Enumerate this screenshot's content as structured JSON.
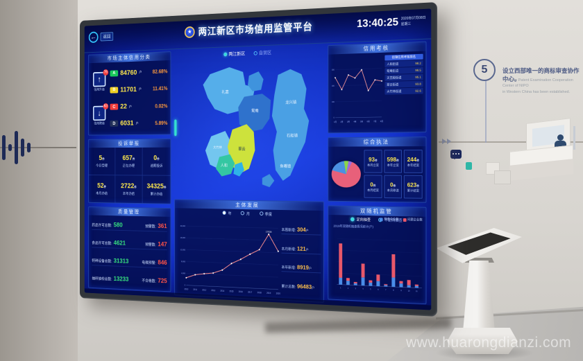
{
  "watermark": "www.huarongdianzi.com",
  "wall": {
    "step_number": "5",
    "milestone_zh": "设立西部唯一的商标审查协作中心。",
    "milestone_en_line1": "The only Patent Examination Cooperation Center of NIPO",
    "milestone_en_line2": "in Western China has been established."
  },
  "screen": {
    "back_label": "返回",
    "back_arrow": "←",
    "title": "两江新区市场信用监管平台",
    "clock": {
      "time": "13:40:25",
      "date": "2020年07月08日",
      "week": "星期三"
    },
    "map": {
      "tabs": [
        {
          "label": "两江新区"
        },
        {
          "label": "自贸区"
        }
      ],
      "labels": [
        "礼嘉",
        "鸳鸯",
        "翠云",
        "人和",
        "大竹林",
        "龙兴镇",
        "石船镇",
        "鱼嘴镇"
      ]
    },
    "panels": {
      "credit": {
        "title": "市场主体信用分类",
        "up": {
          "badge": "76",
          "label": "信用升级",
          "arrow": "↑"
        },
        "down": {
          "badge": "63",
          "label": "信用降级",
          "arrow": "↓"
        },
        "rows": [
          {
            "grade": "A",
            "count": "84760",
            "unit": "户",
            "pct": "82.68%",
            "color": "#18c95a"
          },
          {
            "grade": "B",
            "count": "11701",
            "unit": "户",
            "pct": "11.41%",
            "color": "#f0cf25"
          },
          {
            "grade": "C",
            "count": "22",
            "unit": "户",
            "pct": "0.02%",
            "color": "#f23b3b"
          },
          {
            "grade": "D",
            "count": "6031",
            "unit": "户",
            "pct": "5.89%",
            "color": "#223059"
          }
        ]
      },
      "complaints": {
        "title": "投诉举报",
        "cells": [
          {
            "value": "5",
            "unit": "件",
            "label": "今日受理"
          },
          {
            "value": "657",
            "unit": "件",
            "label": "正在办理"
          },
          {
            "value": "0",
            "unit": "件",
            "label": "逾期投诉"
          },
          {
            "value": "52",
            "unit": "件",
            "label": "本月办结"
          },
          {
            "value": "2722",
            "unit": "件",
            "label": "本年办结"
          },
          {
            "value": "34325",
            "unit": "件",
            "label": "累计办结"
          }
        ]
      },
      "quality": {
        "title": "质量管理",
        "rows": [
          {
            "label": "药品许可总数:",
            "value": "580",
            "warn_label": "预警数:",
            "warn_value": "361"
          },
          {
            "label": "食品许可总数:",
            "value": "4621",
            "warn_label": "预警数:",
            "warn_value": "147"
          },
          {
            "label": "特种设备总数:",
            "value": "31313",
            "warn_label": "电梯预警:",
            "warn_value": "846"
          },
          {
            "label": "抽样抽检总数:",
            "value": "13233",
            "warn_label": "不合格数:",
            "warn_value": "725"
          }
        ]
      },
      "development": {
        "title": "主体发展",
        "legend": [
          "年",
          "月",
          "季度"
        ],
        "stats": [
          {
            "label": "本周新增:",
            "value": "304",
            "unit": "户"
          },
          {
            "label": "本月新增:",
            "value": "121",
            "unit": "户"
          },
          {
            "label": "本年新增:",
            "value": "8919",
            "unit": "户"
          },
          {
            "label": "累计总数:",
            "value": "96483",
            "unit": "户"
          }
        ]
      },
      "assessment": {
        "title": "信用考核",
        "table_header": "街镇信用考核排名",
        "rows": [
          {
            "name": "人和街道",
            "score": "98.2"
          },
          {
            "name": "鸳鸯街道",
            "score": "96.5"
          },
          {
            "name": "天宫殿街道",
            "score": "95.1"
          },
          {
            "name": "翠云街道",
            "score": "93.8"
          },
          {
            "name": "大竹林街道",
            "score": "92.6"
          }
        ]
      },
      "enforcement": {
        "title": "综合执法",
        "cells": [
          {
            "value": "93",
            "unit": "件",
            "label": "本月立案"
          },
          {
            "value": "598",
            "unit": "件",
            "label": "本年立案"
          },
          {
            "value": "244",
            "unit": "件",
            "label": "本年结案"
          },
          {
            "value": "0",
            "unit": "件",
            "label": "本月结案"
          },
          {
            "value": "0",
            "unit": "件",
            "label": "本月移送"
          },
          {
            "value": "623",
            "unit": "件",
            "label": "累计结案"
          }
        ]
      },
      "random_check": {
        "title": "双随机监管",
        "options": [
          {
            "label": "定向抽查"
          },
          {
            "label": "不定向抽查"
          }
        ],
        "note": "2019年双随机抽查情况统计(户)",
        "legend": [
          {
            "label": "检查企业数",
            "color": "#4a8de8"
          },
          {
            "label": "问题企业数",
            "color": "#e8586a"
          }
        ]
      }
    }
  },
  "chart_data": [
    {
      "id": "development",
      "type": "line",
      "title": "主体发展",
      "x": [
        "2010",
        "2011",
        "2012",
        "2013",
        "2014",
        "2015",
        "2016",
        "2017",
        "2018",
        "2019",
        "2020"
      ],
      "values": [
        2518,
        3650,
        4120,
        4480,
        5600,
        7900,
        9400,
        11200,
        12800,
        17934,
        12460
      ],
      "peak_label": "17934",
      "ylim": [
        0,
        20000
      ],
      "yticks": [
        "0",
        "4,000",
        "8,000",
        "12,000",
        "16,000",
        "20,000"
      ],
      "line_color": "#ff8f8f"
    },
    {
      "id": "assessment",
      "type": "line",
      "title": "信用考核",
      "x": [
        "1月",
        "2月",
        "3月",
        "4月",
        "5月",
        "6月",
        "7月",
        "8月"
      ],
      "values": [
        250,
        175,
        265,
        245,
        295,
        165,
        230,
        222
      ],
      "ylim": [
        0,
        300
      ],
      "yticks": [
        "0",
        "100",
        "200",
        "300"
      ],
      "line_color": "#ff9a9a"
    },
    {
      "id": "enforcement-pie",
      "type": "pie",
      "title": "综合执法",
      "slices": [
        {
          "value": 73,
          "color": "#e8607a"
        },
        {
          "value": 18,
          "color": "#4a90e2"
        },
        {
          "value": 5,
          "color": "#8bd64a"
        },
        {
          "value": 4,
          "color": "#9a6ae0"
        }
      ]
    },
    {
      "id": "random-check",
      "type": "bar",
      "title": "双随机监管",
      "categories": [
        "1",
        "2",
        "3",
        "4",
        "5",
        "6",
        "7",
        "8",
        "9",
        "10",
        "11"
      ],
      "series": [
        {
          "name": "检查企业数",
          "color": "#4a8de8",
          "values": [
            30,
            18,
            8,
            35,
            14,
            22,
            6,
            40,
            16,
            10,
            8
          ]
        },
        {
          "name": "问题企业数",
          "color": "#e8586a",
          "values": [
            150,
            12,
            6,
            60,
            10,
            28,
            4,
            100,
            10,
            22,
            6
          ]
        }
      ],
      "ylim": [
        0,
        200
      ]
    }
  ]
}
